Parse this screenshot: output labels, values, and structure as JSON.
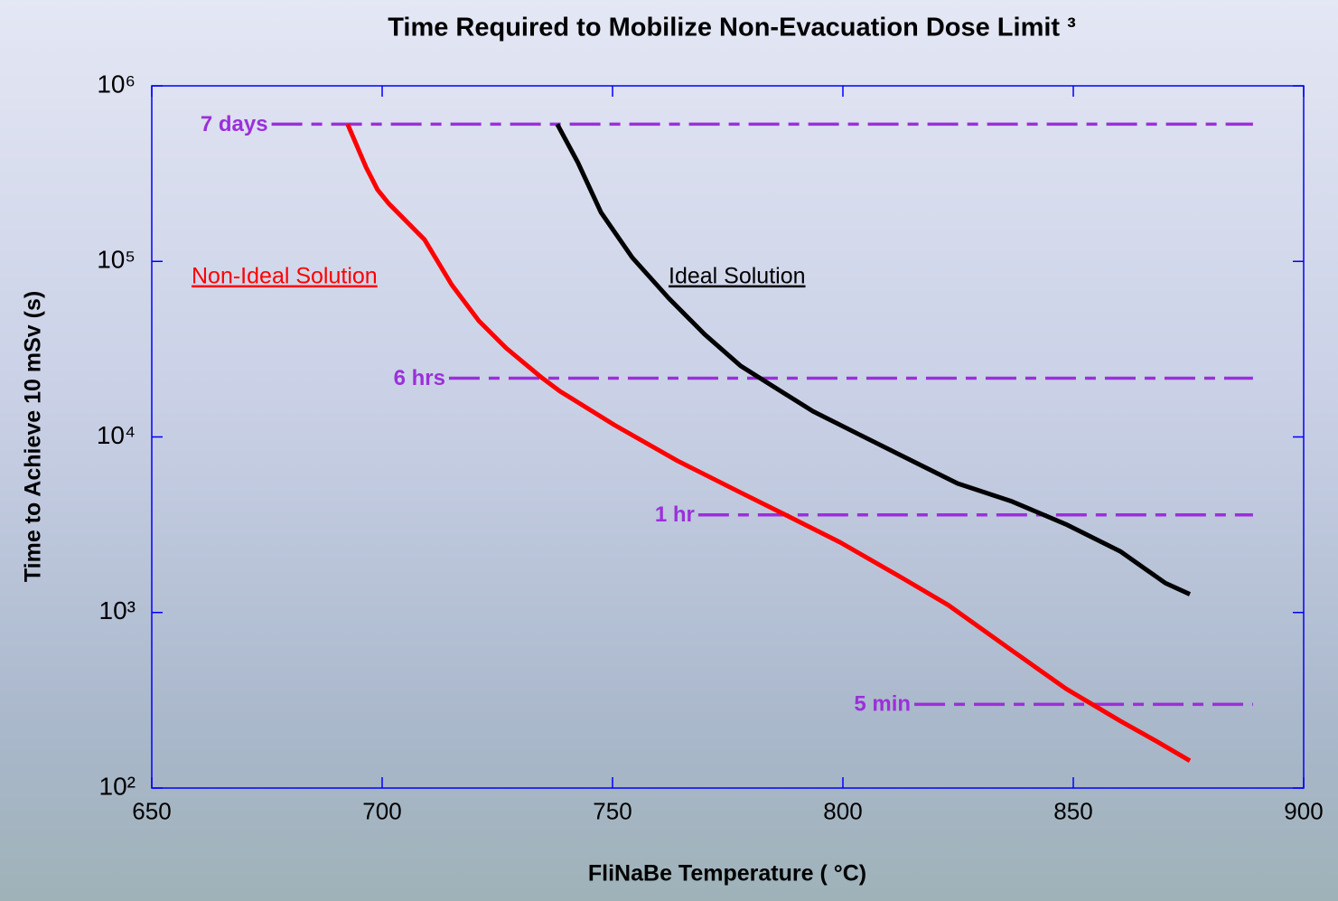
{
  "chart_data": {
    "type": "line",
    "title": "Time Required to Mobilize Non-Evacuation Dose Limit ³",
    "x_label": "FliNaBe Temperature ( °C)",
    "y_label": "Time to Achieve 10 mSv (s)",
    "log_y": true,
    "xlim": [
      650,
      900
    ],
    "xticks": [
      650,
      700,
      750,
      800,
      850,
      900
    ],
    "ylim": [
      100,
      1000000
    ],
    "yticks": [
      {
        "value": 100,
        "label": "10²"
      },
      {
        "value": 1000,
        "label": "10³"
      },
      {
        "value": 10000,
        "label": "10⁴"
      },
      {
        "value": 100000,
        "label": "10⁵"
      },
      {
        "value": 1000000,
        "label": "10⁶"
      }
    ],
    "series": [
      {
        "name": "Non-Ideal Solution",
        "color": "#ff0000",
        "x": [
          692.5,
          696.5,
          699,
          701.4,
          709.2,
          715.1,
          721,
          726.9,
          734.7,
          738.6,
          750.4,
          764.1,
          777.8,
          787.6,
          799.4,
          813.1,
          822.9,
          836.7,
          848.4,
          860.2,
          868,
          875.3
        ],
        "values": [
          604800,
          344000,
          256000,
          214000,
          133000,
          73600,
          45800,
          32100,
          21700,
          18200,
          11700,
          7310,
          4820,
          3590,
          2510,
          1560,
          1100,
          607,
          368,
          241,
          185,
          143
        ]
      },
      {
        "name": "Ideal Solution",
        "color": "#000000",
        "x": [
          738,
          742.5,
          747.5,
          754.3,
          762.2,
          770,
          777.8,
          785.7,
          793.5,
          803.3,
          813.1,
          824.9,
          836.7,
          848.4,
          860.2,
          870,
          875.3
        ],
        "values": [
          604800,
          365000,
          190000,
          105000,
          61700,
          38400,
          25400,
          18800,
          14000,
          10400,
          7740,
          5430,
          4290,
          3180,
          2230,
          1470,
          1270
        ]
      }
    ],
    "reference_lines": [
      {
        "label": "7 days",
        "value": 604800,
        "x": [
          676,
          889
        ]
      },
      {
        "label": "6 hrs",
        "value": 21600,
        "x": [
          714.5,
          889
        ]
      },
      {
        "label": "1 hr",
        "value": 3600,
        "x": [
          768.6,
          889
        ]
      },
      {
        "label": "5 min",
        "value": 300,
        "x": [
          815.5,
          889
        ]
      }
    ],
    "reference_color": "#9b30d9"
  }
}
